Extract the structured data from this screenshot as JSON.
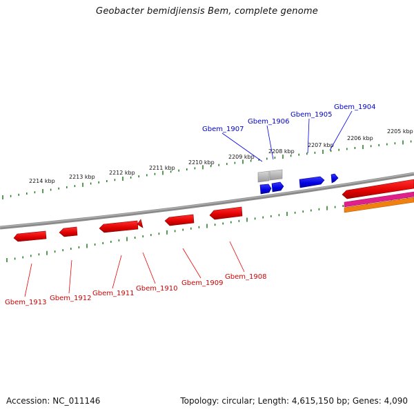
{
  "title": "Geobacter bemidjiensis Bem, complete genome",
  "footer": {
    "accession": "Accession: NC_011146",
    "summary": "Topology: circular; Length: 4,615,150 bp; Genes: 4,090"
  },
  "scale_labels": [
    "2214 kbp",
    "2213 kbp",
    "2212 kbp",
    "2211 kbp",
    "2210 kbp",
    "2209 kbp",
    "2208 kbp",
    "2207 kbp",
    "2206 kbp",
    "2205 kbp"
  ],
  "genes_top": [
    {
      "label": "Gbem_1907"
    },
    {
      "label": "Gbem_1906"
    },
    {
      "label": "Gbem_1905"
    },
    {
      "label": "Gbem_1904"
    }
  ],
  "genes_bottom": [
    {
      "label": "Gbem_1913"
    },
    {
      "label": "Gbem_1912"
    },
    {
      "label": "Gbem_1911"
    },
    {
      "label": "Gbem_1910"
    },
    {
      "label": "Gbem_1909"
    },
    {
      "label": "Gbem_1908"
    }
  ],
  "colors": {
    "forward_strand": "#0000ee",
    "reverse_strand": "#ee0000",
    "tick": "#1a7a1a",
    "backbone": "#808080",
    "pseudo": "#b0b0b0",
    "track_magenta": "#e0208a",
    "track_orange": "#f08010"
  }
}
